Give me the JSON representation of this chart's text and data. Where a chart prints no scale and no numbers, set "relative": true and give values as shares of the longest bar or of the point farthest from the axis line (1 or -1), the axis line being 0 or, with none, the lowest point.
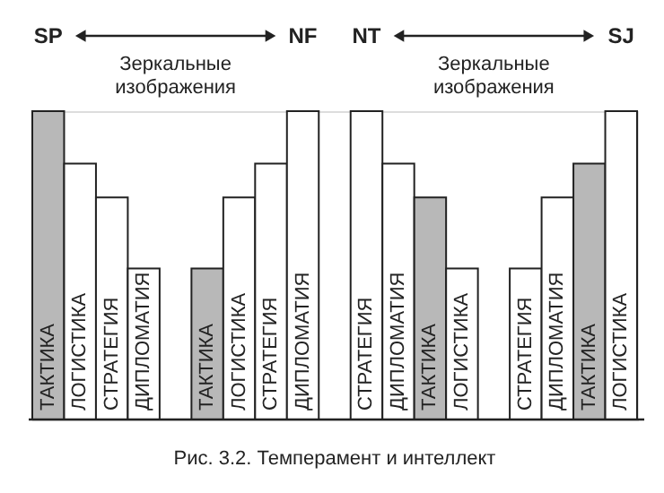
{
  "chart_data": {
    "type": "bar",
    "relative": true,
    "categories": [
      "ТАКТИКА",
      "ЛОГИСТИКА",
      "СТРАТЕГИЯ",
      "ДИПЛОМАТИЯ",
      null,
      "ТАКТИКА",
      "ЛОГИСТИКА",
      "СТРАТЕГИЯ",
      "ДИПЛОМАТИЯ",
      null,
      "СТРАТЕГИЯ",
      "ДИПЛОМАТИЯ",
      "ТАКТИКА",
      "ЛОГИСТИКА",
      null,
      "СТРАТЕГИЯ",
      "ДИПЛОМАТИЯ",
      "ТАКТИКА",
      "ЛОГИСТИКА"
    ],
    "values": [
      1,
      0.83,
      0.72,
      0.49,
      null,
      0.49,
      0.72,
      0.83,
      1,
      null,
      1,
      0.83,
      0.72,
      0.49,
      null,
      0.49,
      0.72,
      0.83,
      1
    ],
    "colors": [
      "#b8b8b8",
      "#ffffff",
      "#ffffff",
      "#ffffff",
      null,
      "#b8b8b8",
      "#ffffff",
      "#ffffff",
      "#ffffff",
      null,
      "#ffffff",
      "#ffffff",
      "#b8b8b8",
      "#ffffff",
      null,
      "#ffffff",
      "#ffffff",
      "#b8b8b8",
      "#ffffff"
    ],
    "annotations": [
      "SP",
      "NF",
      "Зеркальные изображения",
      "NT",
      "SJ",
      "Зеркальные изображения",
      "Рис. 3.2. Темперамент и интеллект"
    ]
  }
}
